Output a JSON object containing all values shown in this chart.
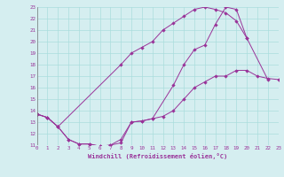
{
  "xlabel": "Windchill (Refroidissement éolien,°C)",
  "bg_color": "#d5eef0",
  "line_color": "#993399",
  "grid_color": "#aadddd",
  "xmin": 0,
  "xmax": 23,
  "ymin": 11,
  "ymax": 23,
  "line1": [
    [
      0,
      13.7
    ],
    [
      1,
      13.4
    ],
    [
      2,
      12.6
    ],
    [
      3,
      11.5
    ],
    [
      4,
      11.1
    ],
    [
      5,
      11.1
    ],
    [
      6,
      10.9
    ],
    [
      7,
      11.0
    ],
    [
      8,
      11.2
    ],
    [
      9,
      13.0
    ],
    [
      10,
      13.1
    ],
    [
      11,
      13.3
    ],
    [
      13,
      16.2
    ],
    [
      14,
      18.0
    ],
    [
      15,
      19.3
    ],
    [
      16,
      19.7
    ],
    [
      17,
      21.5
    ],
    [
      18,
      23.0
    ],
    [
      19,
      22.8
    ],
    [
      20,
      20.3
    ]
  ],
  "line2": [
    [
      0,
      13.7
    ],
    [
      1,
      13.4
    ],
    [
      2,
      12.6
    ],
    [
      8,
      18.0
    ],
    [
      9,
      19.0
    ],
    [
      10,
      19.5
    ],
    [
      11,
      20.0
    ],
    [
      12,
      21.0
    ],
    [
      13,
      21.6
    ],
    [
      14,
      22.2
    ],
    [
      15,
      22.8
    ],
    [
      16,
      23.0
    ],
    [
      17,
      22.8
    ],
    [
      18,
      22.5
    ],
    [
      19,
      21.8
    ],
    [
      20,
      20.3
    ],
    [
      22,
      16.7
    ]
  ],
  "line3": [
    [
      0,
      13.7
    ],
    [
      1,
      13.4
    ],
    [
      2,
      12.6
    ],
    [
      3,
      11.5
    ],
    [
      4,
      11.1
    ],
    [
      5,
      11.1
    ],
    [
      6,
      10.9
    ],
    [
      7,
      11.0
    ],
    [
      8,
      11.5
    ],
    [
      9,
      13.0
    ],
    [
      10,
      13.1
    ],
    [
      11,
      13.3
    ],
    [
      12,
      13.5
    ],
    [
      13,
      14.0
    ],
    [
      14,
      15.0
    ],
    [
      15,
      16.0
    ],
    [
      16,
      16.5
    ],
    [
      17,
      17.0
    ],
    [
      18,
      17.0
    ],
    [
      19,
      17.5
    ],
    [
      20,
      17.5
    ],
    [
      21,
      17.0
    ],
    [
      22,
      16.8
    ],
    [
      23,
      16.7
    ]
  ]
}
